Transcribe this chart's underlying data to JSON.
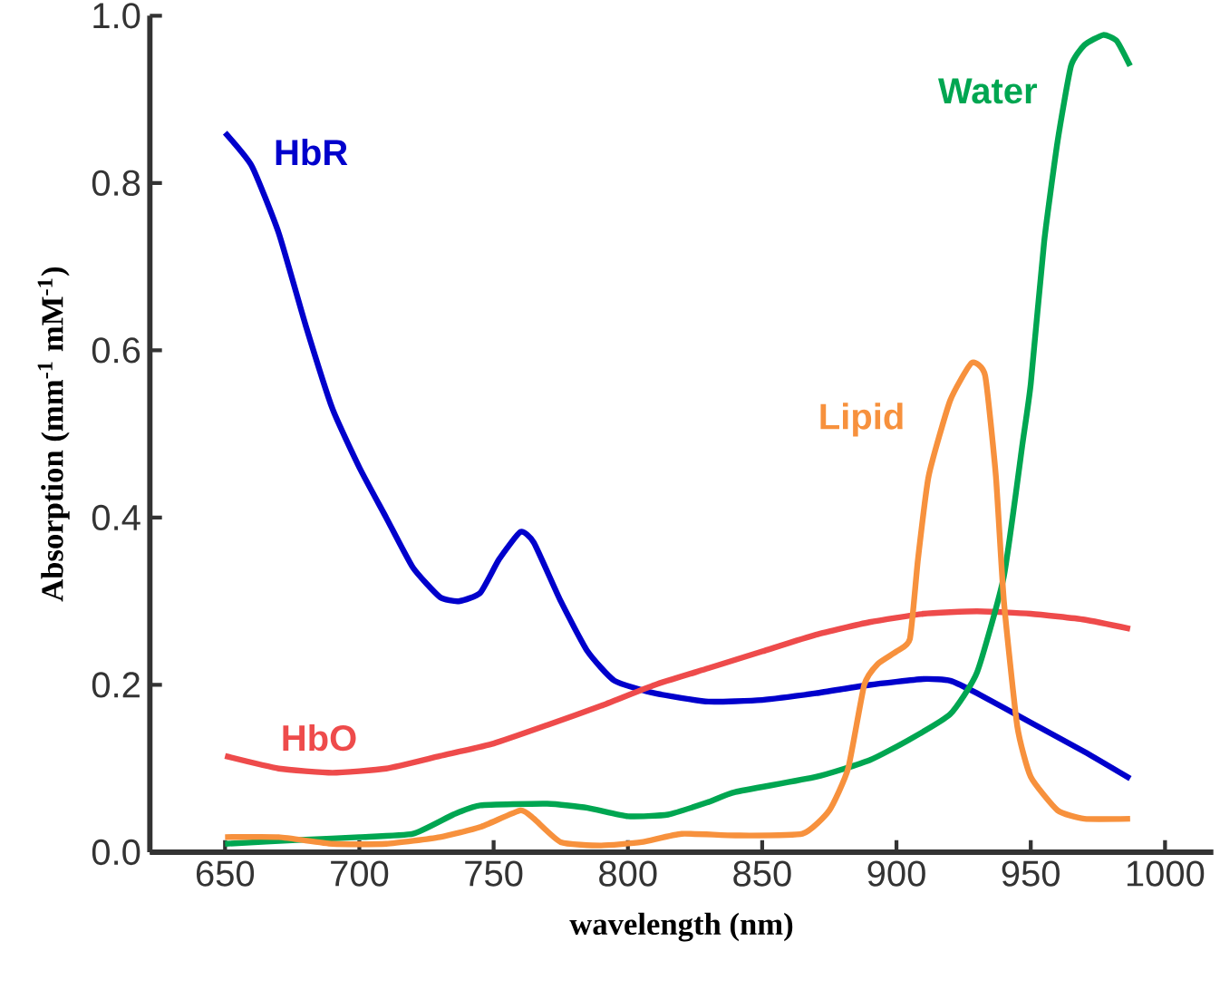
{
  "chart_data": {
    "type": "line",
    "xlabel": "wavelength (nm)",
    "ylabel": "Absorption (mm$^{-1}$ mM$^{-1}$)",
    "xlim": [
      622,
      1018
    ],
    "ylim": [
      0,
      1.0
    ],
    "xticks": [
      650,
      700,
      750,
      800,
      850,
      900,
      950,
      1000
    ],
    "yticks": [
      {
        "value": 0,
        "label": "0.0"
      },
      {
        "value": 0.2,
        "label": "0.2"
      },
      {
        "value": 0.4,
        "label": "0.4"
      },
      {
        "value": 0.6,
        "label": "0.6"
      },
      {
        "value": 0.8,
        "label": "0.8"
      },
      {
        "value": 1.0,
        "label": "1.0"
      }
    ],
    "grid": false,
    "marker": "none",
    "line_style": "solid",
    "series": [
      {
        "name": "HbR",
        "color": "#0000cc",
        "x": [
          650,
          660,
          670,
          680,
          690,
          700,
          710,
          720,
          730,
          737,
          745,
          752,
          760,
          765,
          775,
          785,
          795,
          810,
          830,
          850,
          870,
          890,
          910,
          920,
          930,
          950,
          970,
          987
        ],
        "values": [
          0.86,
          0.82,
          0.74,
          0.63,
          0.53,
          0.46,
          0.4,
          0.34,
          0.305,
          0.3,
          0.31,
          0.35,
          0.383,
          0.37,
          0.3,
          0.24,
          0.205,
          0.19,
          0.18,
          0.182,
          0.19,
          0.2,
          0.207,
          0.205,
          0.19,
          0.155,
          0.12,
          0.088
        ]
      },
      {
        "name": "HbO",
        "color": "#ee4b4b",
        "x": [
          650,
          670,
          690,
          710,
          730,
          750,
          770,
          790,
          810,
          830,
          850,
          870,
          890,
          910,
          930,
          950,
          970,
          987
        ],
        "values": [
          0.115,
          0.1,
          0.095,
          0.1,
          0.115,
          0.13,
          0.152,
          0.175,
          0.2,
          0.22,
          0.24,
          0.26,
          0.275,
          0.285,
          0.288,
          0.285,
          0.278,
          0.267
        ]
      },
      {
        "name": "Water",
        "color": "#00a651",
        "x": [
          650,
          680,
          700,
          720,
          735,
          745,
          770,
          785,
          800,
          815,
          830,
          840,
          870,
          890,
          905,
          920,
          930,
          940,
          947,
          950,
          955,
          960,
          965,
          970,
          977,
          982,
          987
        ],
        "values": [
          0.01,
          0.015,
          0.018,
          0.022,
          0.045,
          0.056,
          0.058,
          0.053,
          0.043,
          0.045,
          0.06,
          0.072,
          0.09,
          0.11,
          0.135,
          0.165,
          0.215,
          0.33,
          0.49,
          0.56,
          0.73,
          0.85,
          0.94,
          0.965,
          0.977,
          0.97,
          0.94
        ]
      },
      {
        "name": "Lipid",
        "color": "#f7913d",
        "x": [
          650,
          670,
          690,
          710,
          730,
          745,
          760,
          765,
          775,
          790,
          805,
          820,
          840,
          865,
          875,
          882,
          888,
          893,
          900,
          905,
          908,
          912,
          920,
          928,
          933,
          937,
          940,
          945,
          950,
          960,
          970,
          987
        ],
        "values": [
          0.018,
          0.018,
          0.01,
          0.01,
          0.018,
          0.03,
          0.05,
          0.04,
          0.012,
          0.008,
          0.012,
          0.022,
          0.02,
          0.022,
          0.05,
          0.1,
          0.2,
          0.225,
          0.24,
          0.255,
          0.35,
          0.45,
          0.54,
          0.585,
          0.57,
          0.45,
          0.3,
          0.15,
          0.09,
          0.05,
          0.04,
          0.04
        ]
      }
    ]
  }
}
